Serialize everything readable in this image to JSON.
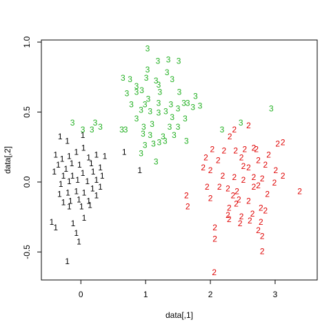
{
  "chart_data": {
    "type": "scatter",
    "xlabel": "data[,1]",
    "ylabel": "data[,2]",
    "xlim": [
      -0.61,
      3.65
    ],
    "ylim": [
      -0.7,
      1.015
    ],
    "xticks": [
      0,
      1,
      2,
      3
    ],
    "yticks": [
      -0.5,
      {
        "value": 0,
        "label": "0.0"
      },
      0.5,
      {
        "value": 1,
        "label": "1.0"
      }
    ],
    "grid": false,
    "series": [
      {
        "name": "1",
        "color": "#000000",
        "x": [
          -0.32,
          -0.21,
          0.03,
          0.04,
          -0.39,
          -0.29,
          -0.18,
          -0.07,
          0.12,
          0.24,
          0.37,
          -0.35,
          -0.23,
          -0.14,
          -0.02,
          0.16,
          0.3,
          -0.41,
          -0.27,
          -0.13,
          0.03,
          0.19,
          0.33,
          -0.31,
          -0.18,
          -0.05,
          0.1,
          0.24,
          -0.33,
          -0.2,
          -0.07,
          0.05,
          0.18,
          0.3,
          -0.27,
          -0.16,
          -0.03,
          0.12,
          0.24,
          -0.18,
          0.01,
          0.14,
          -0.45,
          -0.39,
          -0.12,
          0.05,
          -0.07,
          -0.03,
          -0.21,
          0.67,
          0.91
        ],
        "values": [
          0.32,
          0.29,
          0.33,
          0.24,
          0.19,
          0.16,
          0.18,
          0.21,
          0.17,
          0.19,
          0.18,
          0.12,
          0.09,
          0.13,
          0.12,
          0.13,
          0.1,
          0.07,
          0.04,
          0.04,
          0.06,
          0.07,
          0.04,
          -0.02,
          0.0,
          0.01,
          0.0,
          0.01,
          -0.09,
          -0.08,
          -0.07,
          -0.08,
          -0.05,
          -0.04,
          -0.15,
          -0.14,
          -0.13,
          -0.14,
          -0.1,
          -0.18,
          -0.18,
          -0.17,
          -0.29,
          -0.33,
          -0.3,
          -0.26,
          -0.37,
          -0.43,
          -0.57,
          0.21,
          0.08
        ]
      },
      {
        "name": "2",
        "color": "#df0000",
        "x": [
          2.59,
          2.37,
          2.3,
          3.12,
          3.04,
          2.03,
          2.21,
          2.39,
          2.53,
          2.67,
          2.71,
          2.9,
          1.93,
          2.12,
          2.48,
          2.74,
          1.89,
          2.0,
          2.51,
          2.59,
          2.85,
          3.01,
          2.19,
          2.37,
          2.51,
          2.67,
          2.8,
          3.12,
          1.95,
          2.14,
          2.27,
          2.41,
          2.67,
          2.74,
          2.99,
          3.38,
          1.63,
          1.65,
          2.0,
          2.35,
          2.44,
          2.59,
          2.88,
          2.29,
          2.4,
          2.78,
          2.85,
          2.27,
          2.48,
          2.65,
          2.78,
          2.07,
          2.29,
          2.46,
          2.61,
          2.74,
          2.07,
          2.8,
          2.8,
          2.06
        ],
        "values": [
          0.4,
          0.37,
          0.32,
          0.28,
          0.27,
          0.23,
          0.22,
          0.22,
          0.23,
          0.24,
          0.23,
          0.19,
          0.17,
          0.15,
          0.17,
          0.15,
          0.1,
          0.08,
          0.11,
          0.1,
          0.12,
          0.08,
          0.04,
          0.03,
          0.01,
          0.03,
          0.02,
          0.04,
          -0.04,
          -0.04,
          -0.05,
          -0.07,
          -0.04,
          -0.03,
          -0.01,
          -0.07,
          -0.1,
          -0.18,
          -0.12,
          -0.1,
          -0.13,
          -0.14,
          -0.09,
          -0.19,
          -0.16,
          -0.19,
          -0.21,
          -0.24,
          -0.25,
          -0.23,
          -0.29,
          -0.33,
          -0.27,
          -0.3,
          -0.28,
          -0.35,
          -0.41,
          -0.39,
          -0.5,
          -0.65
        ]
      },
      {
        "name": "3",
        "color": "#22b022",
        "x": [
          1.03,
          1.19,
          1.35,
          1.51,
          1.03,
          1.33,
          0.65,
          0.76,
          1.01,
          1.16,
          1.41,
          1.2,
          0.86,
          0.71,
          0.86,
          0.94,
          1.22,
          1.52,
          1.77,
          1.04,
          1.2,
          1.59,
          0.78,
          0.99,
          1.39,
          1.65,
          1.84,
          0.93,
          1.07,
          1.31,
          1.5,
          1.73,
          0.86,
          1.2,
          1.41,
          1.61,
          0.22,
          -0.13,
          0.03,
          0.17,
          0.3,
          0.63,
          0.69,
          0.97,
          1.1,
          1.37,
          1.5,
          0.96,
          1.07,
          1.27,
          1.44,
          1.63,
          1.21,
          1.3,
          0.99,
          1.12,
          0.93,
          1.16,
          2.94,
          2.47,
          2.18
        ],
        "values": [
          0.95,
          0.86,
          0.87,
          0.86,
          0.8,
          0.78,
          0.74,
          0.73,
          0.74,
          0.72,
          0.73,
          0.69,
          0.68,
          0.63,
          0.64,
          0.65,
          0.64,
          0.64,
          0.61,
          0.59,
          0.56,
          0.56,
          0.55,
          0.55,
          0.55,
          0.56,
          0.54,
          0.51,
          0.5,
          0.5,
          0.52,
          0.53,
          0.45,
          0.49,
          0.46,
          0.45,
          0.42,
          0.42,
          0.37,
          0.37,
          0.39,
          0.37,
          0.37,
          0.39,
          0.41,
          0.39,
          0.39,
          0.34,
          0.33,
          0.32,
          0.33,
          0.29,
          0.28,
          0.29,
          0.26,
          0.27,
          0.2,
          0.14,
          0.52,
          0.42,
          0.37
        ]
      }
    ]
  }
}
